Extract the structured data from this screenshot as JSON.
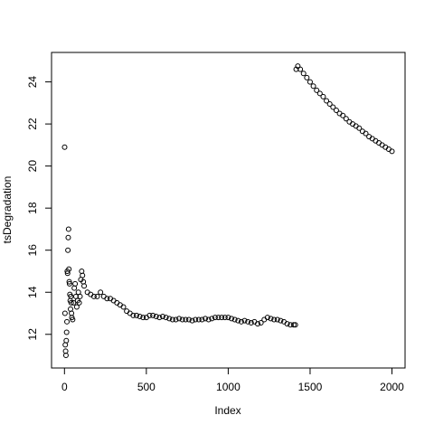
{
  "chart_data": {
    "type": "scatter",
    "x_label": "Index",
    "y_label": "tsDegradation",
    "color": "#000000",
    "xlim": [
      -79,
      2080
    ],
    "ylim": [
      10.4,
      25.4
    ],
    "xticks": [
      0,
      500,
      1000,
      1500,
      2000
    ],
    "yticks": [
      12,
      14,
      16,
      18,
      20,
      22,
      24
    ],
    "x": [
      1,
      3,
      5,
      7,
      9,
      11,
      13,
      15,
      17,
      19,
      21,
      23,
      25,
      27,
      29,
      31,
      33,
      35,
      37,
      39,
      41,
      43,
      45,
      50,
      55,
      60,
      65,
      70,
      75,
      80,
      85,
      90,
      95,
      100,
      105,
      110,
      115,
      120,
      140,
      160,
      180,
      200,
      220,
      240,
      260,
      280,
      300,
      320,
      340,
      360,
      380,
      400,
      420,
      440,
      460,
      480,
      500,
      520,
      540,
      560,
      580,
      600,
      620,
      640,
      660,
      680,
      700,
      720,
      740,
      760,
      780,
      800,
      820,
      840,
      860,
      880,
      900,
      920,
      940,
      960,
      980,
      1000,
      1020,
      1040,
      1060,
      1080,
      1100,
      1120,
      1140,
      1160,
      1180,
      1200,
      1220,
      1240,
      1260,
      1280,
      1300,
      1320,
      1340,
      1360,
      1380,
      1400,
      1410,
      1415,
      1425,
      1440,
      1460,
      1480,
      1500,
      1520,
      1540,
      1560,
      1580,
      1600,
      1620,
      1640,
      1660,
      1680,
      1700,
      1720,
      1740,
      1760,
      1780,
      1800,
      1820,
      1840,
      1860,
      1880,
      1900,
      1920,
      1940,
      1960,
      1980,
      2000
    ],
    "values": [
      20.9,
      13.0,
      11.5,
      11.2,
      11.0,
      11.7,
      12.1,
      12.6,
      15.0,
      14.9,
      16.0,
      16.6,
      17.0,
      15.1,
      14.5,
      14.4,
      13.9,
      13.6,
      13.2,
      13.8,
      13.5,
      13.0,
      12.8,
      12.7,
      13.5,
      14.2,
      14.4,
      13.8,
      13.3,
      13.6,
      14.0,
      13.5,
      13.8,
      14.6,
      15.0,
      14.8,
      14.5,
      14.3,
      14.0,
      13.9,
      13.8,
      13.8,
      14.0,
      13.8,
      13.7,
      13.7,
      13.6,
      13.5,
      13.4,
      13.3,
      13.1,
      13.0,
      12.9,
      12.9,
      12.85,
      12.8,
      12.8,
      12.9,
      12.9,
      12.85,
      12.8,
      12.85,
      12.8,
      12.75,
      12.7,
      12.7,
      12.75,
      12.7,
      12.7,
      12.7,
      12.65,
      12.7,
      12.7,
      12.7,
      12.75,
      12.7,
      12.75,
      12.8,
      12.8,
      12.8,
      12.8,
      12.8,
      12.75,
      12.7,
      12.65,
      12.6,
      12.65,
      12.6,
      12.55,
      12.6,
      12.5,
      12.55,
      12.7,
      12.8,
      12.75,
      12.7,
      12.7,
      12.65,
      12.6,
      12.5,
      12.45,
      12.45,
      12.45,
      24.6,
      24.75,
      24.6,
      24.4,
      24.2,
      24.0,
      23.8,
      23.6,
      23.45,
      23.3,
      23.1,
      22.95,
      22.8,
      22.65,
      22.5,
      22.4,
      22.25,
      22.1,
      22.0,
      21.9,
      21.8,
      21.65,
      21.55,
      21.4,
      21.3,
      21.2,
      21.1,
      21.0,
      20.9,
      20.8,
      20.7
    ]
  }
}
